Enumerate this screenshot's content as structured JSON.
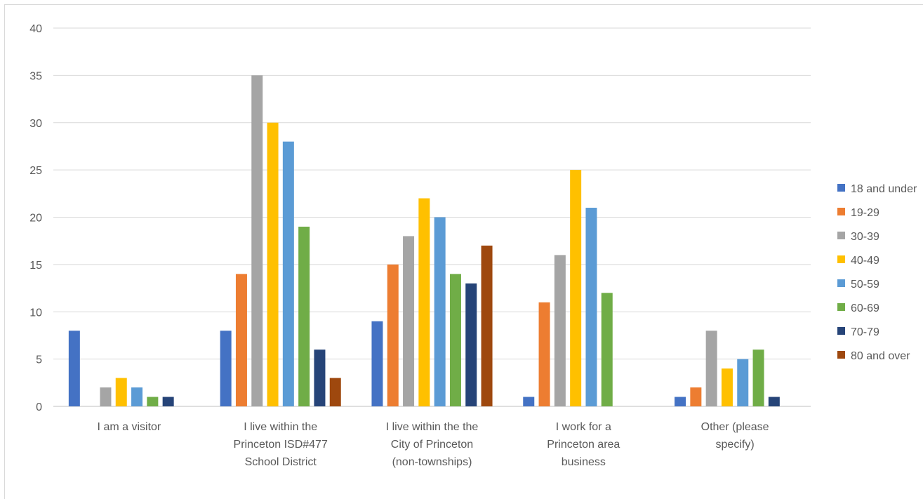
{
  "chart_data": {
    "type": "bar",
    "title": "",
    "xlabel": "",
    "ylabel": "",
    "ylim": [
      0,
      40
    ],
    "yticks": [
      0,
      5,
      10,
      15,
      20,
      25,
      30,
      35,
      40
    ],
    "grid": true,
    "legend_position": "right",
    "categories": [
      [
        "I am a visitor"
      ],
      [
        "I live within the",
        "Princeton ISD#477",
        "School District"
      ],
      [
        "I live within the the",
        "City of Princeton",
        "(non-townships)"
      ],
      [
        "I work for a",
        "Princeton area",
        "business"
      ],
      [
        "Other (please",
        "specify)"
      ]
    ],
    "series": [
      {
        "name": "18 and under",
        "color": "#4472c4",
        "values": [
          8,
          8,
          9,
          1,
          1
        ]
      },
      {
        "name": "19-29",
        "color": "#ed7d31",
        "values": [
          0,
          14,
          15,
          11,
          2
        ]
      },
      {
        "name": "30-39",
        "color": "#a5a5a5",
        "values": [
          2,
          35,
          18,
          16,
          8
        ]
      },
      {
        "name": "40-49",
        "color": "#ffc000",
        "values": [
          3,
          30,
          22,
          25,
          4
        ]
      },
      {
        "name": "50-59",
        "color": "#5b9bd5",
        "values": [
          2,
          28,
          20,
          21,
          5
        ]
      },
      {
        "name": "60-69",
        "color": "#70ad47",
        "values": [
          1,
          19,
          14,
          12,
          6
        ]
      },
      {
        "name": "70-79",
        "color": "#264478",
        "values": [
          1,
          6,
          13,
          0,
          1
        ]
      },
      {
        "name": "80 and over",
        "color": "#9e480e",
        "values": [
          0,
          3,
          17,
          0,
          0
        ]
      }
    ]
  }
}
